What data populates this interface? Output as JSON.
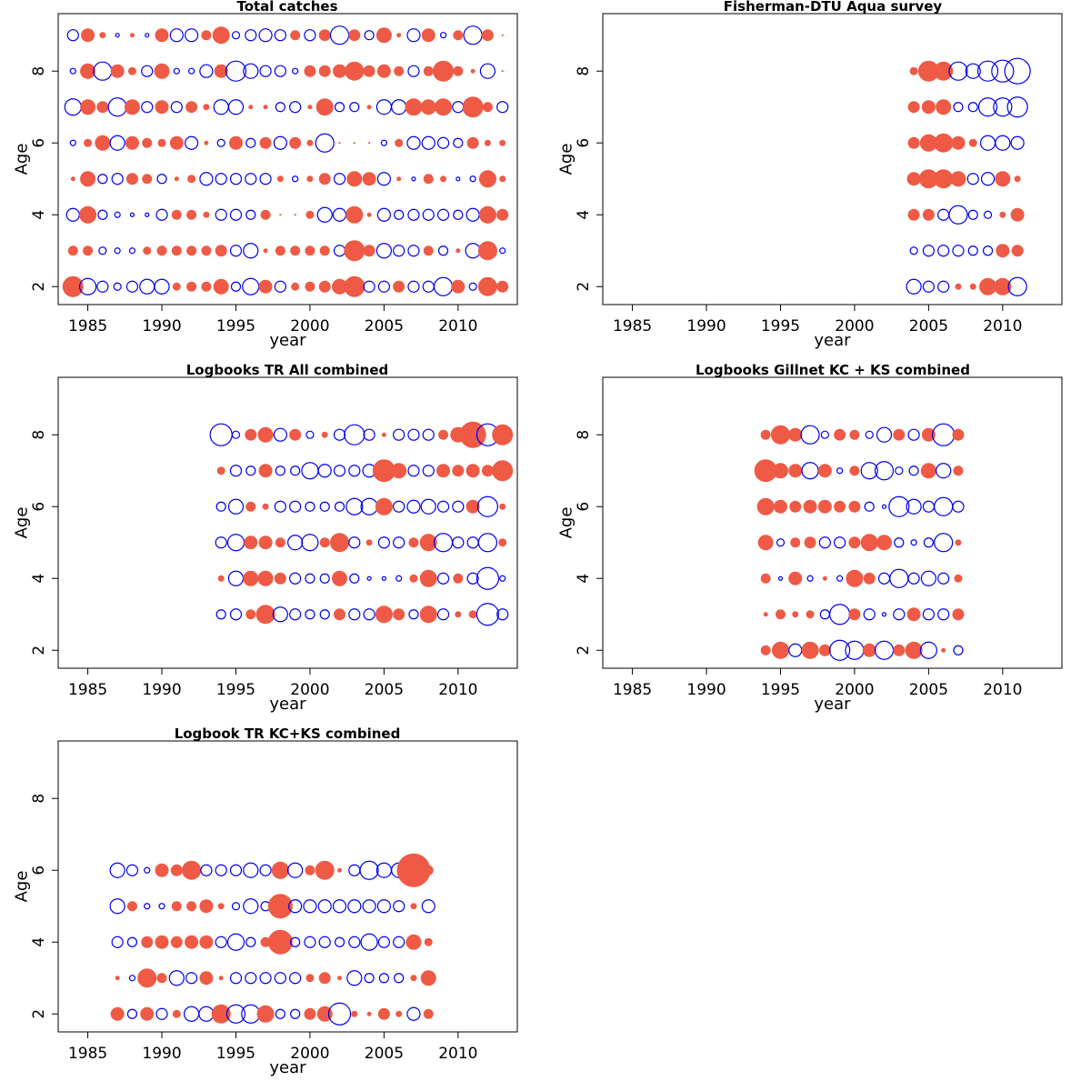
{
  "colors": {
    "positive": "#ee5a45",
    "negative": "#0000ee",
    "axis": "#000000"
  },
  "chart_data": [
    {
      "type": "scatter",
      "title": "Total catches",
      "xlabel": "year",
      "ylabel": "Age",
      "xlim": [
        1983,
        2014
      ],
      "ylim": [
        1.5,
        9.6
      ],
      "xticks": [
        1985,
        1990,
        1995,
        2000,
        2005,
        2010
      ],
      "yticks": [
        2,
        4,
        6,
        8
      ],
      "years": [
        1984,
        1985,
        1986,
        1987,
        1988,
        1989,
        1990,
        1991,
        1992,
        1993,
        1994,
        1995,
        1996,
        1997,
        1998,
        1999,
        2000,
        2001,
        2002,
        2003,
        2004,
        2005,
        2006,
        2007,
        2008,
        2009,
        2010,
        2011,
        2012,
        2013
      ],
      "rows": [
        {
          "age": 9,
          "r": [
            -6,
            7,
            3,
            -2,
            2,
            -2,
            7,
            -7,
            -7,
            5,
            9,
            -4,
            -6,
            -7,
            -6,
            5,
            -6,
            6,
            -10,
            6,
            -5,
            8,
            2,
            -7,
            7,
            -3,
            5,
            -10,
            6,
            0
          ]
        },
        {
          "age": 8,
          "r": [
            -3,
            8,
            -10,
            7,
            4,
            -6,
            8,
            -3,
            -3,
            -7,
            7,
            -11,
            -8,
            -6,
            -6,
            -3,
            6,
            6,
            7,
            10,
            6,
            7,
            5,
            -6,
            5,
            11,
            5,
            2,
            -8,
            0
          ]
        },
        {
          "age": 7,
          "r": [
            -9,
            8,
            6,
            -10,
            8,
            -6,
            7,
            -6,
            6,
            3,
            -8,
            -8,
            2,
            2,
            -5,
            -6,
            2,
            9,
            -5,
            -5,
            2,
            -8,
            -8,
            9,
            8,
            9,
            -6,
            11,
            5,
            -6
          ]
        },
        {
          "age": 6,
          "r": [
            -3,
            4,
            8,
            -8,
            7,
            5,
            4,
            7,
            -7,
            2,
            -4,
            7,
            -5,
            6,
            -7,
            6,
            3,
            -10,
            0,
            0,
            0,
            -3,
            4,
            -7,
            -7,
            -6,
            -5,
            6,
            3,
            3
          ]
        },
        {
          "age": 5,
          "r": [
            2,
            8,
            -5,
            -6,
            6,
            5,
            -5,
            2,
            4,
            -7,
            -6,
            -6,
            -6,
            -6,
            3,
            -3,
            3,
            6,
            -6,
            8,
            7,
            -7,
            2,
            -2,
            5,
            3,
            -2,
            -3,
            9,
            3
          ]
        },
        {
          "age": 4,
          "r": [
            -7,
            9,
            -5,
            -3,
            -2,
            -2,
            -6,
            5,
            5,
            3,
            -6,
            -6,
            -5,
            5,
            0,
            0,
            4,
            -8,
            -7,
            9,
            2,
            -7,
            -5,
            -6,
            -6,
            -6,
            -5,
            -7,
            9,
            6
          ]
        },
        {
          "age": 3,
          "r": [
            5,
            5,
            -4,
            -3,
            -3,
            4,
            5,
            5,
            5,
            5,
            6,
            -6,
            -8,
            2,
            5,
            5,
            5,
            5,
            -6,
            11,
            6,
            -8,
            -6,
            -6,
            5,
            -5,
            2,
            -8,
            10,
            -3
          ]
        },
        {
          "age": 2,
          "r": [
            11,
            -9,
            -6,
            -4,
            -6,
            -8,
            -8,
            4,
            5,
            5,
            8,
            -5,
            -9,
            7,
            -6,
            4,
            5,
            6,
            8,
            11,
            -6,
            -6,
            6,
            -6,
            -6,
            -10,
            7,
            -4,
            10,
            6
          ]
        }
      ]
    },
    {
      "type": "scatter",
      "title": "Fisherman-DTU Aqua survey",
      "xlabel": "year",
      "ylabel": "Age",
      "xlim": [
        1983,
        2014
      ],
      "ylim": [
        1.5,
        9.6
      ],
      "xticks": [
        1985,
        1990,
        1995,
        2000,
        2005,
        2010
      ],
      "yticks": [
        2,
        4,
        6,
        8
      ],
      "years": [
        2004,
        2005,
        2006,
        2007,
        2008,
        2009,
        2010,
        2011
      ],
      "rows": [
        {
          "age": 8,
          "r": [
            4,
            11,
            10,
            -10,
            -8,
            -11,
            -12,
            -14
          ]
        },
        {
          "age": 7,
          "r": [
            6,
            7,
            8,
            -5,
            -5,
            -10,
            -10,
            -11
          ]
        },
        {
          "age": 6,
          "r": [
            6,
            9,
            10,
            7,
            4,
            -8,
            -8,
            -7
          ]
        },
        {
          "age": 5,
          "r": [
            7,
            10,
            10,
            8,
            -6,
            -7,
            8,
            3
          ]
        },
        {
          "age": 4,
          "r": [
            6,
            6,
            -6,
            -10,
            -5,
            -4,
            3,
            7
          ]
        },
        {
          "age": 3,
          "r": [
            -4,
            -6,
            -6,
            -6,
            -5,
            -5,
            7,
            6
          ]
        },
        {
          "age": 2,
          "r": [
            -8,
            -6,
            -6,
            3,
            3,
            9,
            9,
            -10
          ]
        }
      ]
    },
    {
      "type": "scatter",
      "title": "Logbooks TR All combined",
      "xlabel": "year",
      "ylabel": "Age",
      "xlim": [
        1983,
        2014
      ],
      "ylim": [
        1.5,
        9.6
      ],
      "xticks": [
        1985,
        1990,
        1995,
        2000,
        2005,
        2010
      ],
      "yticks": [
        2,
        4,
        6,
        8
      ],
      "years": [
        1994,
        1995,
        1996,
        1997,
        1998,
        1999,
        2000,
        2001,
        2002,
        2003,
        2004,
        2005,
        2006,
        2007,
        2008,
        2009,
        2010,
        2011,
        2012,
        2013
      ],
      "rows": [
        {
          "age": 8,
          "r": [
            -12,
            -4,
            6,
            8,
            -7,
            6,
            -4,
            3,
            -6,
            -11,
            -6,
            2,
            -6,
            -6,
            -6,
            5,
            8,
            14,
            -12,
            11
          ]
        },
        {
          "age": 7,
          "r": [
            4,
            -6,
            -5,
            7,
            -5,
            -5,
            -9,
            -7,
            -6,
            -6,
            -7,
            12,
            8,
            -6,
            -6,
            7,
            6,
            7,
            6,
            11
          ]
        },
        {
          "age": 6,
          "r": [
            -5,
            -8,
            5,
            3,
            -6,
            -6,
            -5,
            -5,
            -5,
            -9,
            -9,
            9,
            -6,
            -7,
            -8,
            -6,
            -6,
            7,
            -11,
            3
          ]
        },
        {
          "age": 5,
          "r": [
            -6,
            -9,
            7,
            7,
            5,
            -8,
            -9,
            5,
            10,
            -6,
            3,
            -6,
            -6,
            5,
            9,
            -10,
            -6,
            -6,
            -10,
            4
          ]
        },
        {
          "age": 4,
          "r": [
            3,
            -8,
            8,
            8,
            6,
            -6,
            -5,
            -5,
            8,
            -5,
            -2,
            -2,
            -3,
            4,
            9,
            -6,
            5,
            -6,
            -12,
            -3
          ]
        },
        {
          "age": 3,
          "r": [
            -5,
            -6,
            5,
            10,
            -8,
            -6,
            -5,
            -5,
            6,
            -6,
            -6,
            9,
            6,
            -5,
            9,
            -6,
            3,
            4,
            -12,
            -6
          ]
        }
      ]
    },
    {
      "type": "scatter",
      "title": "Logbooks Gillnet KC + KS combined",
      "xlabel": "year",
      "ylabel": "Age",
      "xlim": [
        1983,
        2014
      ],
      "ylim": [
        1.5,
        9.6
      ],
      "xticks": [
        1985,
        1990,
        1995,
        2000,
        2005,
        2010
      ],
      "yticks": [
        2,
        4,
        6,
        8
      ],
      "years": [
        1994,
        1995,
        1996,
        1997,
        1998,
        1999,
        2000,
        2001,
        2002,
        2003,
        2004,
        2005,
        2006,
        2007
      ],
      "rows": [
        {
          "age": 8,
          "r": [
            5,
            10,
            7,
            -10,
            -4,
            6,
            5,
            -4,
            -8,
            6,
            -6,
            7,
            -12,
            6
          ]
        },
        {
          "age": 7,
          "r": [
            12,
            8,
            7,
            -9,
            7,
            -3,
            5,
            -9,
            -10,
            -4,
            -5,
            8,
            -8,
            5
          ]
        },
        {
          "age": 6,
          "r": [
            9,
            7,
            6,
            7,
            7,
            6,
            6,
            -5,
            -2,
            -11,
            -8,
            -6,
            -10,
            -6
          ]
        },
        {
          "age": 5,
          "r": [
            8,
            -4,
            5,
            6,
            -6,
            -6,
            6,
            9,
            8,
            -5,
            -3,
            -5,
            -10,
            3
          ]
        },
        {
          "age": 4,
          "r": [
            5,
            -2,
            7,
            -3,
            2,
            -3,
            9,
            6,
            -6,
            -10,
            -6,
            -8,
            -6,
            4
          ]
        },
        {
          "age": 3,
          "r": [
            2,
            5,
            3,
            4,
            -5,
            -11,
            6,
            -6,
            -2,
            -6,
            7,
            -6,
            -6,
            6
          ]
        },
        {
          "age": 2,
          "r": [
            5,
            9,
            -7,
            9,
            6,
            -11,
            -10,
            7,
            -10,
            6,
            9,
            -9,
            2,
            -5
          ]
        }
      ]
    },
    {
      "type": "scatter",
      "title": "Logbook TR KC+KS combined",
      "xlabel": "year",
      "ylabel": "Age",
      "xlim": [
        1983,
        2014
      ],
      "ylim": [
        1.5,
        9.6
      ],
      "xticks": [
        1985,
        1990,
        1995,
        2000,
        2005,
        2010
      ],
      "yticks": [
        2,
        4,
        6,
        8
      ],
      "years": [
        1987,
        1988,
        1989,
        1990,
        1991,
        1992,
        1993,
        1994,
        1995,
        1996,
        1997,
        1998,
        1999,
        2000,
        2001,
        2002,
        2003,
        2004,
        2005,
        2006,
        2007,
        2008
      ],
      "rows": [
        {
          "age": 6,
          "r": [
            -8,
            -6,
            -3,
            7,
            6,
            10,
            -6,
            -6,
            -6,
            -8,
            -6,
            9,
            -8,
            5,
            10,
            2,
            -6,
            -10,
            -8,
            -8,
            18,
            5
          ]
        },
        {
          "age": 5,
          "r": [
            -8,
            5,
            -3,
            -3,
            5,
            5,
            7,
            3,
            -4,
            -8,
            -5,
            13,
            -7,
            -7,
            -7,
            -7,
            -7,
            -7,
            -7,
            -6,
            3,
            -7
          ]
        },
        {
          "age": 4,
          "r": [
            -6,
            -5,
            6,
            7,
            6,
            7,
            7,
            -6,
            -9,
            -5,
            5,
            13,
            -5,
            -6,
            -6,
            -5,
            -6,
            -9,
            -6,
            -6,
            8,
            4
          ]
        },
        {
          "age": 3,
          "r": [
            2,
            -3,
            10,
            5,
            -8,
            -6,
            7,
            2,
            -6,
            -6,
            -6,
            -6,
            -6,
            4,
            6,
            2,
            -8,
            -5,
            -5,
            -5,
            3,
            8
          ]
        },
        {
          "age": 2,
          "r": [
            7,
            -5,
            7,
            -6,
            4,
            -8,
            -8,
            10,
            -10,
            -10,
            9,
            -5,
            -5,
            6,
            8,
            -12,
            3,
            2,
            6,
            3,
            -7,
            5
          ]
        }
      ]
    }
  ]
}
